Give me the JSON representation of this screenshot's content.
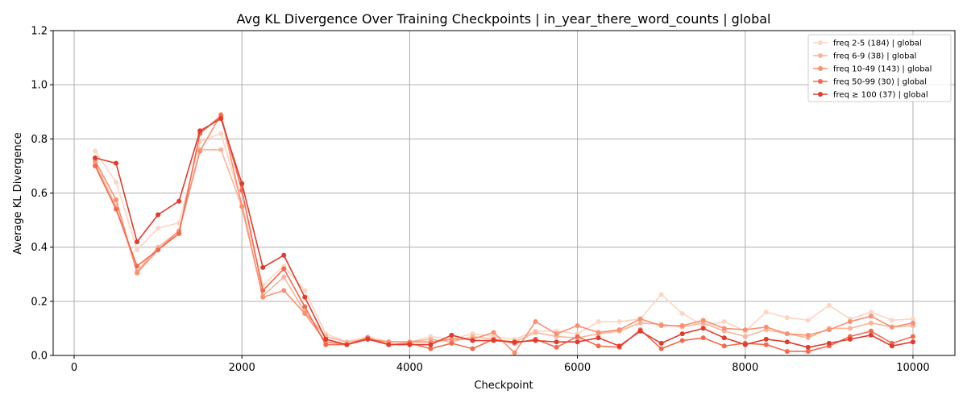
{
  "chart_data": {
    "type": "line",
    "title": "Avg KL Divergence Over Training Checkpoints | in_year_there_word_counts | global",
    "xlabel": "Checkpoint",
    "ylabel": "Average KL Divergence",
    "xlim": [
      -250,
      10500
    ],
    "ylim": [
      0,
      1.2
    ],
    "xticks": [
      0,
      2000,
      4000,
      6000,
      8000,
      10000
    ],
    "yticks": [
      0.0,
      0.2,
      0.4,
      0.6,
      0.8,
      1.0,
      1.2
    ],
    "grid": true,
    "legend_position": "top-right",
    "x": [
      250,
      500,
      750,
      1000,
      1250,
      1500,
      1750,
      2000,
      2250,
      2500,
      2750,
      3000,
      3250,
      3500,
      3750,
      4000,
      4250,
      4500,
      4750,
      5000,
      5250,
      5500,
      5750,
      6000,
      6250,
      6500,
      6750,
      7000,
      7250,
      7500,
      7750,
      8000,
      8250,
      8500,
      8750,
      9000,
      9250,
      9500,
      9750,
      10000
    ],
    "series": [
      {
        "name": "freq 2-5 (184) | global",
        "color": "#fdd5c3",
        "values": [
          0.755,
          0.64,
          0.39,
          0.47,
          0.49,
          0.79,
          0.82,
          0.56,
          0.26,
          0.33,
          0.24,
          0.08,
          0.05,
          0.07,
          0.05,
          0.05,
          0.07,
          0.06,
          0.08,
          0.07,
          0.06,
          0.09,
          0.09,
          0.08,
          0.125,
          0.125,
          0.135,
          0.225,
          0.155,
          0.11,
          0.125,
          0.09,
          0.16,
          0.14,
          0.13,
          0.185,
          0.135,
          0.16,
          0.13,
          0.135
        ]
      },
      {
        "name": "freq 6-9 (38) | global",
        "color": "#fcb499",
        "values": [
          0.71,
          0.55,
          0.31,
          0.4,
          0.46,
          0.76,
          0.76,
          0.55,
          0.22,
          0.29,
          0.16,
          0.07,
          0.05,
          0.06,
          0.05,
          0.05,
          0.06,
          0.05,
          0.07,
          0.06,
          0.05,
          0.085,
          0.07,
          0.065,
          0.08,
          0.09,
          0.12,
          0.115,
          0.105,
          0.12,
          0.09,
          0.07,
          0.095,
          0.08,
          0.065,
          0.1,
          0.1,
          0.12,
          0.105,
          0.11
        ]
      },
      {
        "name": "freq 10-49 (143) | global",
        "color": "#fc8f6f",
        "values": [
          0.72,
          0.575,
          0.305,
          0.39,
          0.46,
          0.755,
          0.89,
          0.55,
          0.215,
          0.24,
          0.155,
          0.05,
          0.04,
          0.06,
          0.05,
          0.05,
          0.05,
          0.06,
          0.06,
          0.085,
          0.01,
          0.125,
          0.08,
          0.11,
          0.085,
          0.095,
          0.135,
          0.11,
          0.11,
          0.13,
          0.1,
          0.095,
          0.105,
          0.08,
          0.075,
          0.095,
          0.125,
          0.145,
          0.105,
          0.12
        ]
      },
      {
        "name": "freq 50-99 (30) | global",
        "color": "#f4694d",
        "values": [
          0.7,
          0.54,
          0.33,
          0.39,
          0.45,
          0.82,
          0.885,
          0.61,
          0.24,
          0.32,
          0.18,
          0.04,
          0.04,
          0.065,
          0.04,
          0.045,
          0.025,
          0.045,
          0.025,
          0.06,
          0.045,
          0.06,
          0.03,
          0.07,
          0.035,
          0.03,
          0.095,
          0.025,
          0.055,
          0.065,
          0.035,
          0.045,
          0.04,
          0.015,
          0.015,
          0.035,
          0.07,
          0.09,
          0.045,
          0.07
        ]
      },
      {
        "name": "freq ≥ 100 (37) | global",
        "color": "#e33a2c",
        "values": [
          0.73,
          0.71,
          0.42,
          0.52,
          0.57,
          0.83,
          0.875,
          0.635,
          0.325,
          0.37,
          0.215,
          0.06,
          0.04,
          0.06,
          0.04,
          0.04,
          0.04,
          0.075,
          0.055,
          0.055,
          0.05,
          0.055,
          0.05,
          0.05,
          0.065,
          0.035,
          0.09,
          0.045,
          0.08,
          0.1,
          0.065,
          0.04,
          0.06,
          0.05,
          0.03,
          0.045,
          0.06,
          0.075,
          0.035,
          0.05
        ]
      }
    ]
  }
}
